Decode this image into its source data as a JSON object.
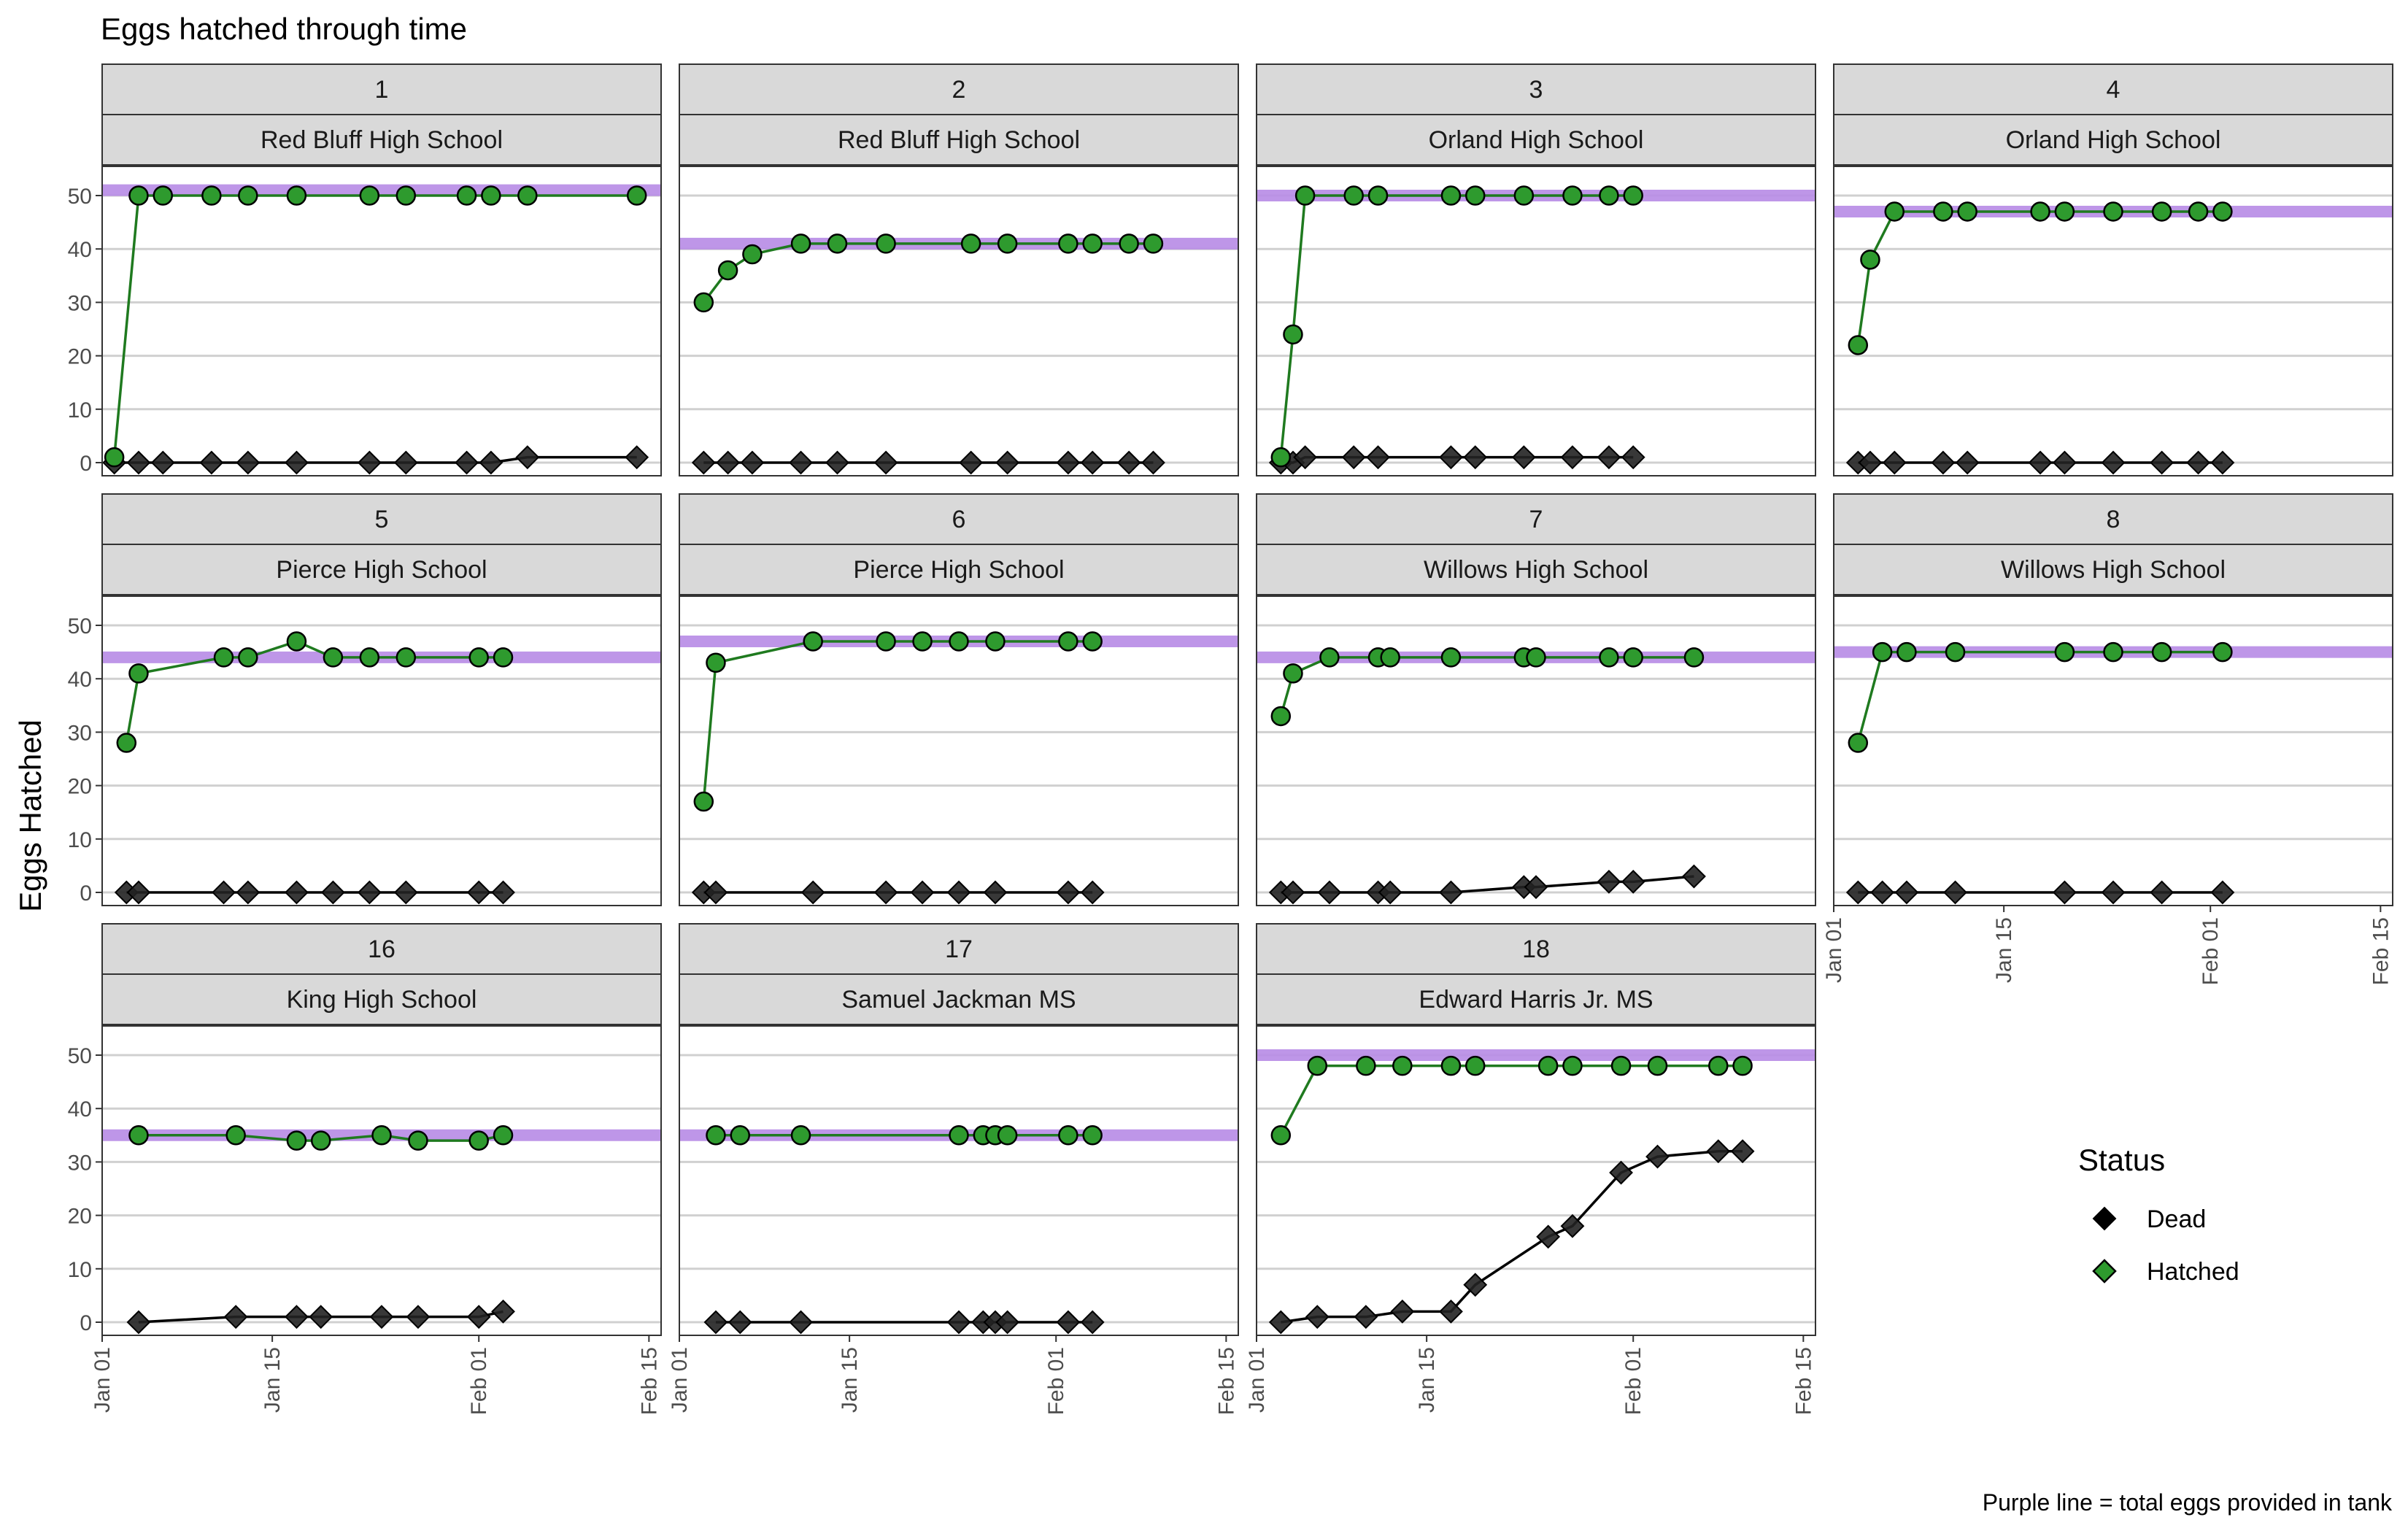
{
  "chart_data": {
    "type": "line",
    "title": "Eggs hatched through time",
    "ylabel": "Eggs Hatched",
    "xlabel": "",
    "caption": "Purple line = total eggs provided in tank",
    "ylim": [
      0,
      50
    ],
    "yticks": [
      0,
      10,
      20,
      30,
      40,
      50
    ],
    "xlim": [
      "2024-01-01",
      "2024-02-16"
    ],
    "xticks": [
      {
        "date": "2024-01-01",
        "label": "Jan 01"
      },
      {
        "date": "2024-01-15",
        "label": "Jan 15"
      },
      {
        "date": "2024-02-01",
        "label": "Feb 01"
      },
      {
        "date": "2024-02-15",
        "label": "Feb 15"
      }
    ],
    "grid": true,
    "legend": {
      "title": "Status",
      "position": "right",
      "entries": [
        {
          "label": "Dead",
          "marker": "diamond",
          "color": "#000000"
        },
        {
          "label": "Hatched",
          "marker": "circle",
          "color": "#2e9a2e"
        }
      ]
    },
    "colors": {
      "hatched_fill": "#2e9a2e",
      "hatched_line": "#1f7a1f",
      "dead": "#222222",
      "total_line": "#b78be6",
      "strip": "#d9d9d9"
    },
    "panels": [
      {
        "id": "1",
        "school": "Red Bluff High School",
        "total": 51,
        "hatched": [
          [
            "2024-01-02",
            1
          ],
          [
            "2024-01-04",
            50
          ],
          [
            "2024-01-06",
            50
          ],
          [
            "2024-01-10",
            50
          ],
          [
            "2024-01-13",
            50
          ],
          [
            "2024-01-17",
            50
          ],
          [
            "2024-01-23",
            50
          ],
          [
            "2024-01-26",
            50
          ],
          [
            "2024-01-31",
            50
          ],
          [
            "2024-02-02",
            50
          ],
          [
            "2024-02-05",
            50
          ],
          [
            "2024-02-14",
            50
          ]
        ],
        "dead": [
          [
            "2024-01-02",
            0
          ],
          [
            "2024-01-04",
            0
          ],
          [
            "2024-01-06",
            0
          ],
          [
            "2024-01-10",
            0
          ],
          [
            "2024-01-13",
            0
          ],
          [
            "2024-01-17",
            0
          ],
          [
            "2024-01-23",
            0
          ],
          [
            "2024-01-26",
            0
          ],
          [
            "2024-01-31",
            0
          ],
          [
            "2024-02-02",
            0
          ],
          [
            "2024-02-05",
            1
          ],
          [
            "2024-02-14",
            1
          ]
        ]
      },
      {
        "id": "2",
        "school": "Red Bluff High School",
        "total": 41,
        "hatched": [
          [
            "2024-01-03",
            30
          ],
          [
            "2024-01-05",
            36
          ],
          [
            "2024-01-07",
            39
          ],
          [
            "2024-01-11",
            41
          ],
          [
            "2024-01-14",
            41
          ],
          [
            "2024-01-18",
            41
          ],
          [
            "2024-01-25",
            41
          ],
          [
            "2024-01-28",
            41
          ],
          [
            "2024-02-02",
            41
          ],
          [
            "2024-02-04",
            41
          ],
          [
            "2024-02-07",
            41
          ],
          [
            "2024-02-09",
            41
          ]
        ],
        "dead": [
          [
            "2024-01-03",
            0
          ],
          [
            "2024-01-05",
            0
          ],
          [
            "2024-01-07",
            0
          ],
          [
            "2024-01-11",
            0
          ],
          [
            "2024-01-14",
            0
          ],
          [
            "2024-01-18",
            0
          ],
          [
            "2024-01-25",
            0
          ],
          [
            "2024-01-28",
            0
          ],
          [
            "2024-02-02",
            0
          ],
          [
            "2024-02-04",
            0
          ],
          [
            "2024-02-07",
            0
          ],
          [
            "2024-02-09",
            0
          ]
        ]
      },
      {
        "id": "3",
        "school": "Orland High School",
        "total": 50,
        "hatched": [
          [
            "2024-01-03",
            1
          ],
          [
            "2024-01-04",
            24
          ],
          [
            "2024-01-05",
            50
          ],
          [
            "2024-01-09",
            50
          ],
          [
            "2024-01-11",
            50
          ],
          [
            "2024-01-17",
            50
          ],
          [
            "2024-01-19",
            50
          ],
          [
            "2024-01-23",
            50
          ],
          [
            "2024-01-27",
            50
          ],
          [
            "2024-01-30",
            50
          ],
          [
            "2024-02-01",
            50
          ]
        ],
        "dead": [
          [
            "2024-01-03",
            0
          ],
          [
            "2024-01-04",
            0
          ],
          [
            "2024-01-05",
            1
          ],
          [
            "2024-01-09",
            1
          ],
          [
            "2024-01-11",
            1
          ],
          [
            "2024-01-17",
            1
          ],
          [
            "2024-01-19",
            1
          ],
          [
            "2024-01-23",
            1
          ],
          [
            "2024-01-27",
            1
          ],
          [
            "2024-01-30",
            1
          ],
          [
            "2024-02-01",
            1
          ]
        ]
      },
      {
        "id": "4",
        "school": "Orland High School",
        "total": 47,
        "hatched": [
          [
            "2024-01-03",
            22
          ],
          [
            "2024-01-04",
            38
          ],
          [
            "2024-01-06",
            47
          ],
          [
            "2024-01-10",
            47
          ],
          [
            "2024-01-12",
            47
          ],
          [
            "2024-01-18",
            47
          ],
          [
            "2024-01-20",
            47
          ],
          [
            "2024-01-24",
            47
          ],
          [
            "2024-01-28",
            47
          ],
          [
            "2024-01-31",
            47
          ],
          [
            "2024-02-02",
            47
          ]
        ],
        "dead": [
          [
            "2024-01-03",
            0
          ],
          [
            "2024-01-04",
            0
          ],
          [
            "2024-01-06",
            0
          ],
          [
            "2024-01-10",
            0
          ],
          [
            "2024-01-12",
            0
          ],
          [
            "2024-01-18",
            0
          ],
          [
            "2024-01-20",
            0
          ],
          [
            "2024-01-24",
            0
          ],
          [
            "2024-01-28",
            0
          ],
          [
            "2024-01-31",
            0
          ],
          [
            "2024-02-02",
            0
          ]
        ]
      },
      {
        "id": "5",
        "school": "Pierce High School",
        "total": 44,
        "hatched": [
          [
            "2024-01-03",
            28
          ],
          [
            "2024-01-04",
            41
          ],
          [
            "2024-01-11",
            44
          ],
          [
            "2024-01-13",
            44
          ],
          [
            "2024-01-17",
            47
          ],
          [
            "2024-01-20",
            44
          ],
          [
            "2024-01-23",
            44
          ],
          [
            "2024-01-26",
            44
          ],
          [
            "2024-02-01",
            44
          ],
          [
            "2024-02-03",
            44
          ]
        ],
        "dead": [
          [
            "2024-01-03",
            0
          ],
          [
            "2024-01-04",
            0
          ],
          [
            "2024-01-11",
            0
          ],
          [
            "2024-01-13",
            0
          ],
          [
            "2024-01-17",
            0
          ],
          [
            "2024-01-20",
            0
          ],
          [
            "2024-01-23",
            0
          ],
          [
            "2024-01-26",
            0
          ],
          [
            "2024-02-01",
            0
          ],
          [
            "2024-02-03",
            0
          ]
        ]
      },
      {
        "id": "6",
        "school": "Pierce High School",
        "total": 47,
        "hatched": [
          [
            "2024-01-03",
            17
          ],
          [
            "2024-01-04",
            43
          ],
          [
            "2024-01-12",
            47
          ],
          [
            "2024-01-18",
            47
          ],
          [
            "2024-01-21",
            47
          ],
          [
            "2024-01-24",
            47
          ],
          [
            "2024-01-27",
            47
          ],
          [
            "2024-02-02",
            47
          ],
          [
            "2024-02-04",
            47
          ]
        ],
        "dead": [
          [
            "2024-01-03",
            0
          ],
          [
            "2024-01-04",
            0
          ],
          [
            "2024-01-12",
            0
          ],
          [
            "2024-01-18",
            0
          ],
          [
            "2024-01-21",
            0
          ],
          [
            "2024-01-24",
            0
          ],
          [
            "2024-01-27",
            0
          ],
          [
            "2024-02-02",
            0
          ],
          [
            "2024-02-04",
            0
          ]
        ]
      },
      {
        "id": "7",
        "school": "Willows High School",
        "total": 44,
        "hatched": [
          [
            "2024-01-03",
            33
          ],
          [
            "2024-01-04",
            41
          ],
          [
            "2024-01-07",
            44
          ],
          [
            "2024-01-11",
            44
          ],
          [
            "2024-01-12",
            44
          ],
          [
            "2024-01-17",
            44
          ],
          [
            "2024-01-23",
            44
          ],
          [
            "2024-01-24",
            44
          ],
          [
            "2024-01-30",
            44
          ],
          [
            "2024-02-01",
            44
          ],
          [
            "2024-02-06",
            44
          ]
        ],
        "dead": [
          [
            "2024-01-03",
            0
          ],
          [
            "2024-01-04",
            0
          ],
          [
            "2024-01-07",
            0
          ],
          [
            "2024-01-11",
            0
          ],
          [
            "2024-01-12",
            0
          ],
          [
            "2024-01-17",
            0
          ],
          [
            "2024-01-23",
            1
          ],
          [
            "2024-01-24",
            1
          ],
          [
            "2024-01-30",
            2
          ],
          [
            "2024-02-01",
            2
          ],
          [
            "2024-02-06",
            3
          ]
        ]
      },
      {
        "id": "8",
        "school": "Willows High School",
        "total": 45,
        "hatched": [
          [
            "2024-01-03",
            28
          ],
          [
            "2024-01-05",
            45
          ],
          [
            "2024-01-07",
            45
          ],
          [
            "2024-01-11",
            45
          ],
          [
            "2024-01-20",
            45
          ],
          [
            "2024-01-24",
            45
          ],
          [
            "2024-01-28",
            45
          ],
          [
            "2024-02-02",
            45
          ]
        ],
        "dead": [
          [
            "2024-01-03",
            0
          ],
          [
            "2024-01-05",
            0
          ],
          [
            "2024-01-07",
            0
          ],
          [
            "2024-01-11",
            0
          ],
          [
            "2024-01-20",
            0
          ],
          [
            "2024-01-24",
            0
          ],
          [
            "2024-01-28",
            0
          ],
          [
            "2024-02-02",
            0
          ]
        ]
      },
      {
        "id": "16",
        "school": "King High School",
        "total": 35,
        "hatched": [
          [
            "2024-01-04",
            35
          ],
          [
            "2024-01-12",
            35
          ],
          [
            "2024-01-17",
            34
          ],
          [
            "2024-01-19",
            34
          ],
          [
            "2024-01-24",
            35
          ],
          [
            "2024-01-27",
            34
          ],
          [
            "2024-02-01",
            34
          ],
          [
            "2024-02-03",
            35
          ]
        ],
        "dead": [
          [
            "2024-01-04",
            0
          ],
          [
            "2024-01-12",
            1
          ],
          [
            "2024-01-17",
            1
          ],
          [
            "2024-01-19",
            1
          ],
          [
            "2024-01-24",
            1
          ],
          [
            "2024-01-27",
            1
          ],
          [
            "2024-02-01",
            1
          ],
          [
            "2024-02-03",
            2
          ]
        ]
      },
      {
        "id": "17",
        "school": "Samuel Jackman MS",
        "total": 35,
        "hatched": [
          [
            "2024-01-04",
            35
          ],
          [
            "2024-01-06",
            35
          ],
          [
            "2024-01-11",
            35
          ],
          [
            "2024-01-24",
            35
          ],
          [
            "2024-01-26",
            35
          ],
          [
            "2024-01-27",
            35
          ],
          [
            "2024-01-28",
            35
          ],
          [
            "2024-02-02",
            35
          ],
          [
            "2024-02-04",
            35
          ]
        ],
        "dead": [
          [
            "2024-01-04",
            0
          ],
          [
            "2024-01-06",
            0
          ],
          [
            "2024-01-11",
            0
          ],
          [
            "2024-01-24",
            0
          ],
          [
            "2024-01-26",
            0
          ],
          [
            "2024-01-27",
            0
          ],
          [
            "2024-01-28",
            0
          ],
          [
            "2024-02-02",
            0
          ],
          [
            "2024-02-04",
            0
          ]
        ]
      },
      {
        "id": "18",
        "school": "Edward Harris Jr. MS",
        "total": 50,
        "hatched": [
          [
            "2024-01-03",
            35
          ],
          [
            "2024-01-06",
            48
          ],
          [
            "2024-01-10",
            48
          ],
          [
            "2024-01-13",
            48
          ],
          [
            "2024-01-17",
            48
          ],
          [
            "2024-01-19",
            48
          ],
          [
            "2024-01-25",
            48
          ],
          [
            "2024-01-27",
            48
          ],
          [
            "2024-01-31",
            48
          ],
          [
            "2024-02-03",
            48
          ],
          [
            "2024-02-08",
            48
          ],
          [
            "2024-02-10",
            48
          ]
        ],
        "dead": [
          [
            "2024-01-03",
            0
          ],
          [
            "2024-01-06",
            1
          ],
          [
            "2024-01-10",
            1
          ],
          [
            "2024-01-13",
            2
          ],
          [
            "2024-01-17",
            2
          ],
          [
            "2024-01-19",
            7
          ],
          [
            "2024-01-25",
            16
          ],
          [
            "2024-01-27",
            18
          ],
          [
            "2024-01-31",
            28
          ],
          [
            "2024-02-03",
            31
          ],
          [
            "2024-02-08",
            32
          ],
          [
            "2024-02-10",
            32
          ]
        ]
      }
    ]
  }
}
